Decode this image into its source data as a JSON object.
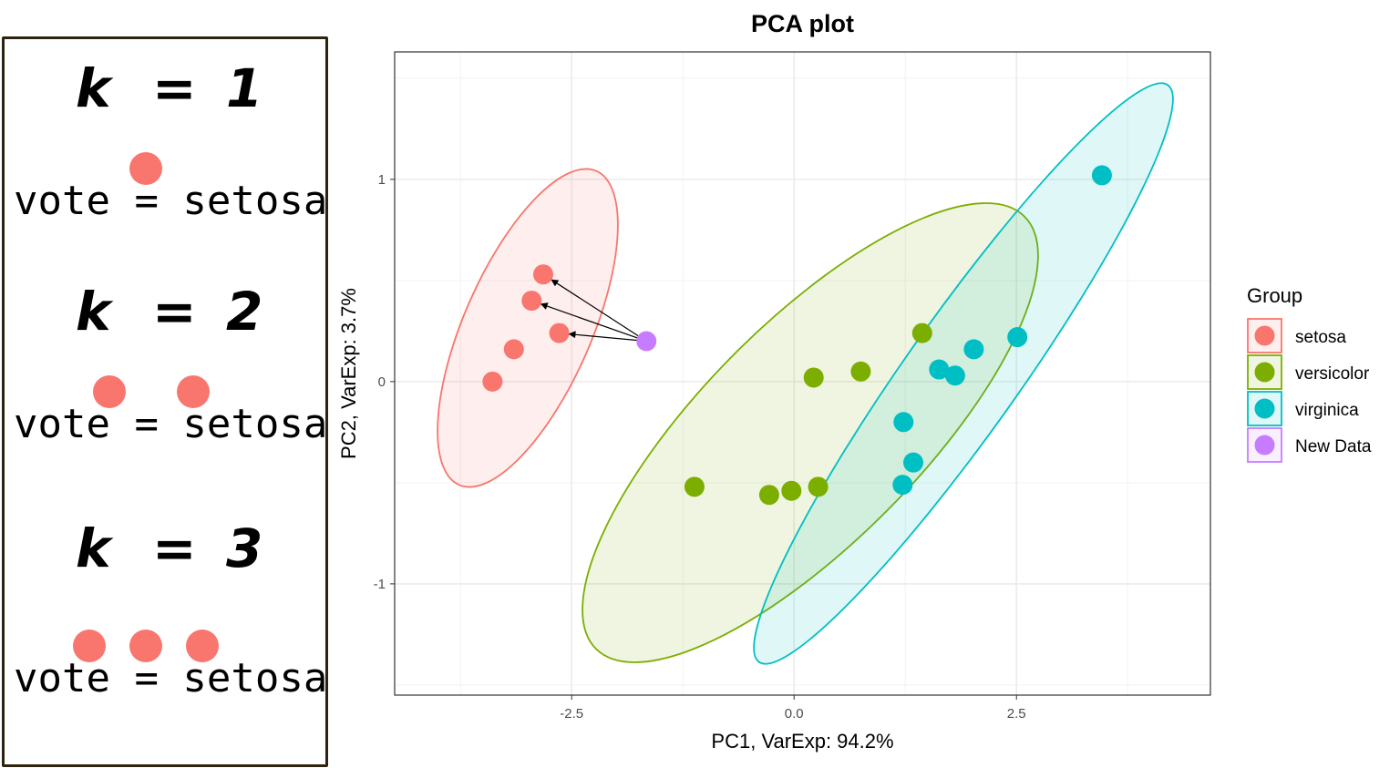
{
  "panel": {
    "blocks": [
      {
        "k_label": "k",
        "eq": "=",
        "k_value": "1",
        "votes": 1,
        "vote_text": "vote = setosa"
      },
      {
        "k_label": "k",
        "eq": "=",
        "k_value": "2",
        "votes": 2,
        "vote_text": "vote = setosa"
      },
      {
        "k_label": "k",
        "eq": "=",
        "k_value": "3",
        "votes": 3,
        "vote_text": "vote = setosa"
      }
    ],
    "dot_color": "#F8766D"
  },
  "chart_data": {
    "type": "scatter",
    "title": "PCA plot",
    "xlabel": "PC1, VarExp: 94.2%",
    "ylabel": "PC2, VarExp: 3.7%",
    "xlim": [
      -4.49,
      4.68
    ],
    "ylim": [
      -1.55,
      1.63
    ],
    "xticks": [
      {
        "v": -2.5,
        "label": "-2.5"
      },
      {
        "v": 0,
        "label": "0.0"
      },
      {
        "v": 2.5,
        "label": "2.5"
      }
    ],
    "yticks": [
      {
        "v": 1,
        "label": "1"
      },
      {
        "v": 0,
        "label": "0"
      },
      {
        "v": -1,
        "label": "-1"
      }
    ],
    "grid": true,
    "legend": {
      "title": "Group",
      "placement": "right"
    },
    "series": [
      {
        "name": "setosa",
        "color": "#F8766D",
        "ellipse": true,
        "points": [
          [
            -2.82,
            0.53
          ],
          [
            -2.95,
            0.4
          ],
          [
            -2.64,
            0.24
          ],
          [
            -3.15,
            0.16
          ],
          [
            -3.39,
            0.0
          ]
        ]
      },
      {
        "name": "versicolor",
        "color": "#7CAE00",
        "ellipse": true,
        "points": [
          [
            1.44,
            0.24
          ],
          [
            0.75,
            0.05
          ],
          [
            0.22,
            0.02
          ],
          [
            -1.12,
            -0.52
          ],
          [
            -0.28,
            -0.56
          ],
          [
            -0.03,
            -0.54
          ],
          [
            0.27,
            -0.52
          ]
        ]
      },
      {
        "name": "virginica",
        "color": "#00BFC4",
        "ellipse": true,
        "points": [
          [
            3.46,
            1.02
          ],
          [
            2.51,
            0.22
          ],
          [
            2.02,
            0.16
          ],
          [
            1.63,
            0.06
          ],
          [
            1.81,
            0.03
          ],
          [
            1.23,
            -0.2
          ],
          [
            1.34,
            -0.4
          ],
          [
            1.22,
            -0.51
          ]
        ]
      },
      {
        "name": "New Data",
        "color": "#C77CFF",
        "ellipse": false,
        "points": [
          [
            -1.66,
            0.2
          ]
        ]
      }
    ],
    "arrows": {
      "from": [
        -1.66,
        0.2
      ],
      "to": [
        [
          -2.82,
          0.53
        ],
        [
          -2.95,
          0.4
        ],
        [
          -2.64,
          0.24
        ]
      ]
    }
  }
}
